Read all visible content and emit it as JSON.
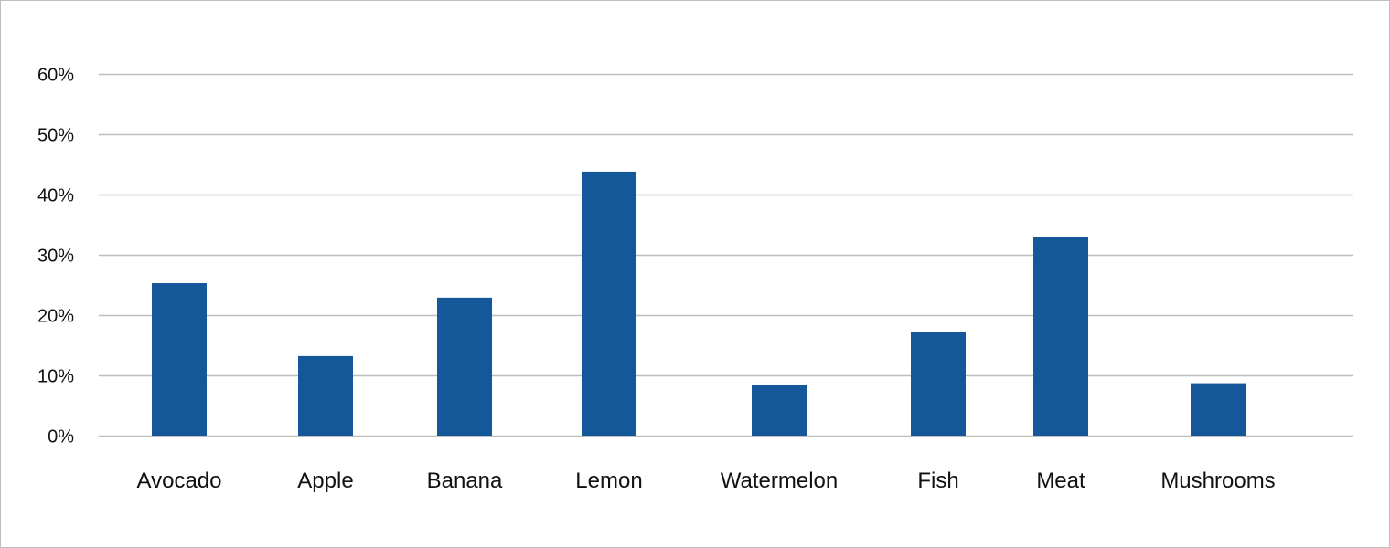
{
  "chart_data": {
    "type": "bar",
    "categories": [
      "Avocado",
      "Apple",
      "Banana",
      "Lemon",
      "Watermelon",
      "Fish",
      "Meat",
      "Mushrooms"
    ],
    "values": [
      25.3,
      13.2,
      22.9,
      43.8,
      8.4,
      17.2,
      32.9,
      8.7
    ],
    "value_unit": "%",
    "ylim": [
      0,
      60
    ],
    "yticks": [
      0,
      10,
      20,
      30,
      40,
      50,
      60
    ],
    "ytick_labels": [
      "0%",
      "10%",
      "20%",
      "30%",
      "40%",
      "50%",
      "60%"
    ],
    "grid": true,
    "legend": "none",
    "bar_color": "#15589A",
    "grid_color": "#BDBDBD"
  }
}
